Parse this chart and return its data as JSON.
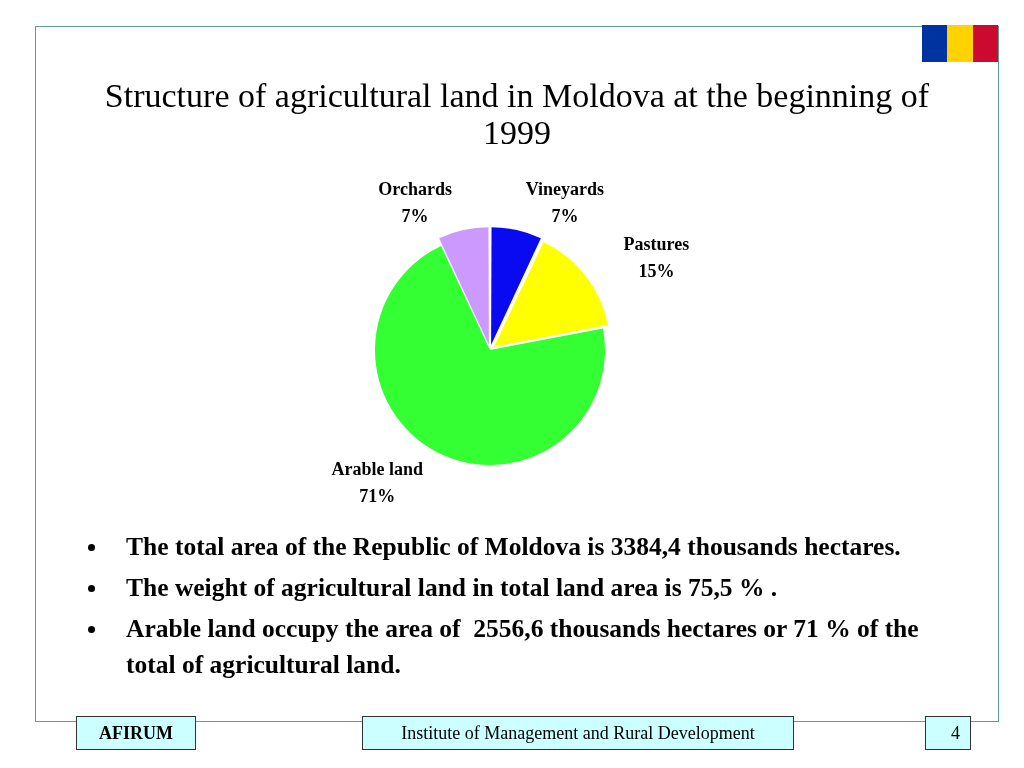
{
  "chart_data": {
    "type": "pie",
    "title": "Structure of agricultural land in Moldova at the beginning of 1999",
    "categories": [
      "Vineyards",
      "Pastures",
      "Arable land",
      "Orchards"
    ],
    "values": [
      7,
      15,
      71,
      7
    ],
    "value_labels": [
      "7%",
      "15%",
      "71%",
      "7%"
    ],
    "colors": [
      "#0a0af2",
      "#ffff00",
      "#33ff33",
      "#cc99ff"
    ],
    "annotations": [
      "The total area of the Republic of Moldova is 3384,4 thousands hectares.",
      "The weight of agricultural land in total land area is 75,5 % .",
      "Arable land occupy the area of  2556,6 thousands hectares or 71 % of the total of agricultural land.",
      "AFIRUM",
      "Institute of Management and Rural Development",
      "4"
    ]
  }
}
